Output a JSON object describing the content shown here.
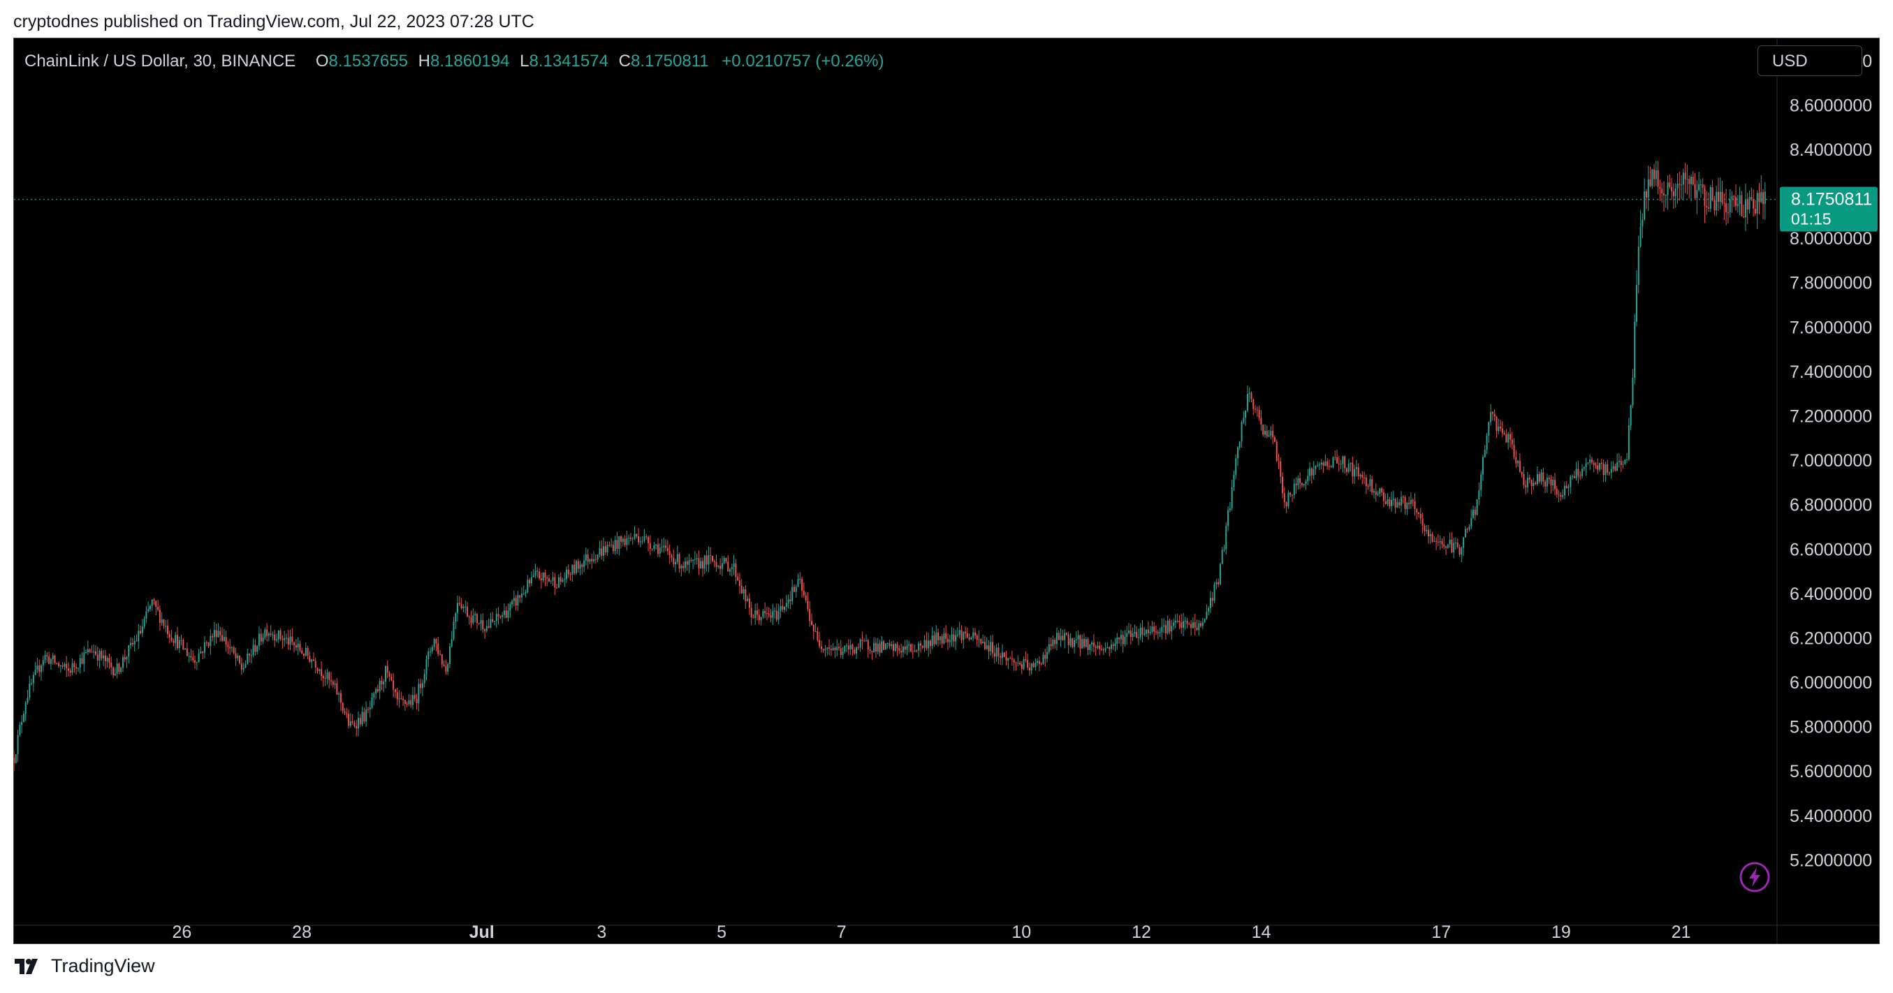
{
  "caption": "cryptodnes published on TradingView.com, Jul 22, 2023 07:28 UTC",
  "legend": {
    "symbol": "ChainLink / US Dollar, 30, BINANCE",
    "o_label": "O",
    "o_value": "8.1537655",
    "h_label": "H",
    "h_value": "8.1860194",
    "l_label": "L",
    "l_value": "8.1341574",
    "c_label": "C",
    "c_value": "8.1750811",
    "change": "+0.0210757 (+0.26%)"
  },
  "currency_button": "USD",
  "last_price_label": {
    "price": "8.1750811",
    "countdown": "01:15"
  },
  "footer_brand": "TradingView",
  "colors": {
    "up": "#26a69a",
    "down": "#ef5350",
    "background": "#000000",
    "axis_text": "#d1d4dc",
    "price_tag": "#089981"
  },
  "chart_data": {
    "type": "candlestick",
    "interval": "30",
    "ylim": [
      5.0,
      8.9
    ],
    "yticks": [
      "5.2000000",
      "5.4000000",
      "5.6000000",
      "5.8000000",
      "6.0000000",
      "6.2000000",
      "6.4000000",
      "6.6000000",
      "6.8000000",
      "7.0000000",
      "7.2000000",
      "7.4000000",
      "7.6000000",
      "7.8000000",
      "8.0000000",
      "8.4000000",
      "8.6000000",
      "8.8000000"
    ],
    "xlim": [
      0,
      29.4
    ],
    "xticks": [
      {
        "x": 2.8,
        "label": "26"
      },
      {
        "x": 4.8,
        "label": "28"
      },
      {
        "x": 7.8,
        "label": "Jul"
      },
      {
        "x": 9.8,
        "label": "3"
      },
      {
        "x": 11.8,
        "label": "5"
      },
      {
        "x": 13.8,
        "label": "7"
      },
      {
        "x": 16.8,
        "label": "10"
      },
      {
        "x": 18.8,
        "label": "12"
      },
      {
        "x": 20.8,
        "label": "14"
      },
      {
        "x": 23.8,
        "label": "17"
      },
      {
        "x": 25.8,
        "label": "19"
      },
      {
        "x": 27.8,
        "label": "21"
      }
    ],
    "last_price": 8.1750811,
    "price_path": [
      [
        0.0,
        5.66
      ],
      [
        0.2,
        5.93
      ],
      [
        0.5,
        6.12
      ],
      [
        0.9,
        6.05
      ],
      [
        1.3,
        6.15
      ],
      [
        1.7,
        6.05
      ],
      [
        2.1,
        6.22
      ],
      [
        2.3,
        6.36
      ],
      [
        2.6,
        6.22
      ],
      [
        3.0,
        6.1
      ],
      [
        3.4,
        6.24
      ],
      [
        3.8,
        6.06
      ],
      [
        4.2,
        6.24
      ],
      [
        4.6,
        6.18
      ],
      [
        5.0,
        6.1
      ],
      [
        5.4,
        5.95
      ],
      [
        5.6,
        5.8
      ],
      [
        5.9,
        5.86
      ],
      [
        6.2,
        6.05
      ],
      [
        6.4,
        5.9
      ],
      [
        6.7,
        5.92
      ],
      [
        7.0,
        6.2
      ],
      [
        7.2,
        6.05
      ],
      [
        7.4,
        6.38
      ],
      [
        7.6,
        6.3
      ],
      [
        7.9,
        6.25
      ],
      [
        8.3,
        6.34
      ],
      [
        8.7,
        6.48
      ],
      [
        9.1,
        6.45
      ],
      [
        9.5,
        6.55
      ],
      [
        10.0,
        6.62
      ],
      [
        10.4,
        6.66
      ],
      [
        10.8,
        6.6
      ],
      [
        11.2,
        6.52
      ],
      [
        11.6,
        6.55
      ],
      [
        12.0,
        6.52
      ],
      [
        12.3,
        6.3
      ],
      [
        12.7,
        6.3
      ],
      [
        13.1,
        6.45
      ],
      [
        13.4,
        6.18
      ],
      [
        13.8,
        6.14
      ],
      [
        14.2,
        6.17
      ],
      [
        14.6,
        6.15
      ],
      [
        15.0,
        6.15
      ],
      [
        15.4,
        6.2
      ],
      [
        15.8,
        6.22
      ],
      [
        16.2,
        6.17
      ],
      [
        16.6,
        6.1
      ],
      [
        17.0,
        6.06
      ],
      [
        17.4,
        6.2
      ],
      [
        17.8,
        6.18
      ],
      [
        18.2,
        6.15
      ],
      [
        18.6,
        6.22
      ],
      [
        19.0,
        6.24
      ],
      [
        19.4,
        6.26
      ],
      [
        19.8,
        6.25
      ],
      [
        20.1,
        6.48
      ],
      [
        20.3,
        6.85
      ],
      [
        20.5,
        7.2
      ],
      [
        20.6,
        7.3
      ],
      [
        20.8,
        7.15
      ],
      [
        21.0,
        7.1
      ],
      [
        21.2,
        6.8
      ],
      [
        21.4,
        6.9
      ],
      [
        21.8,
        6.98
      ],
      [
        22.1,
        7.0
      ],
      [
        22.5,
        6.92
      ],
      [
        22.9,
        6.82
      ],
      [
        23.3,
        6.8
      ],
      [
        23.6,
        6.65
      ],
      [
        23.9,
        6.62
      ],
      [
        24.1,
        6.6
      ],
      [
        24.4,
        6.8
      ],
      [
        24.6,
        7.2
      ],
      [
        24.9,
        7.1
      ],
      [
        25.2,
        6.9
      ],
      [
        25.5,
        6.92
      ],
      [
        25.8,
        6.85
      ],
      [
        26.2,
        6.98
      ],
      [
        26.6,
        6.95
      ],
      [
        26.9,
        7.02
      ],
      [
        27.0,
        7.4
      ],
      [
        27.1,
        8.05
      ],
      [
        27.3,
        8.3
      ],
      [
        27.6,
        8.2
      ],
      [
        27.9,
        8.25
      ],
      [
        28.3,
        8.18
      ],
      [
        28.8,
        8.15
      ],
      [
        29.2,
        8.17
      ]
    ]
  }
}
